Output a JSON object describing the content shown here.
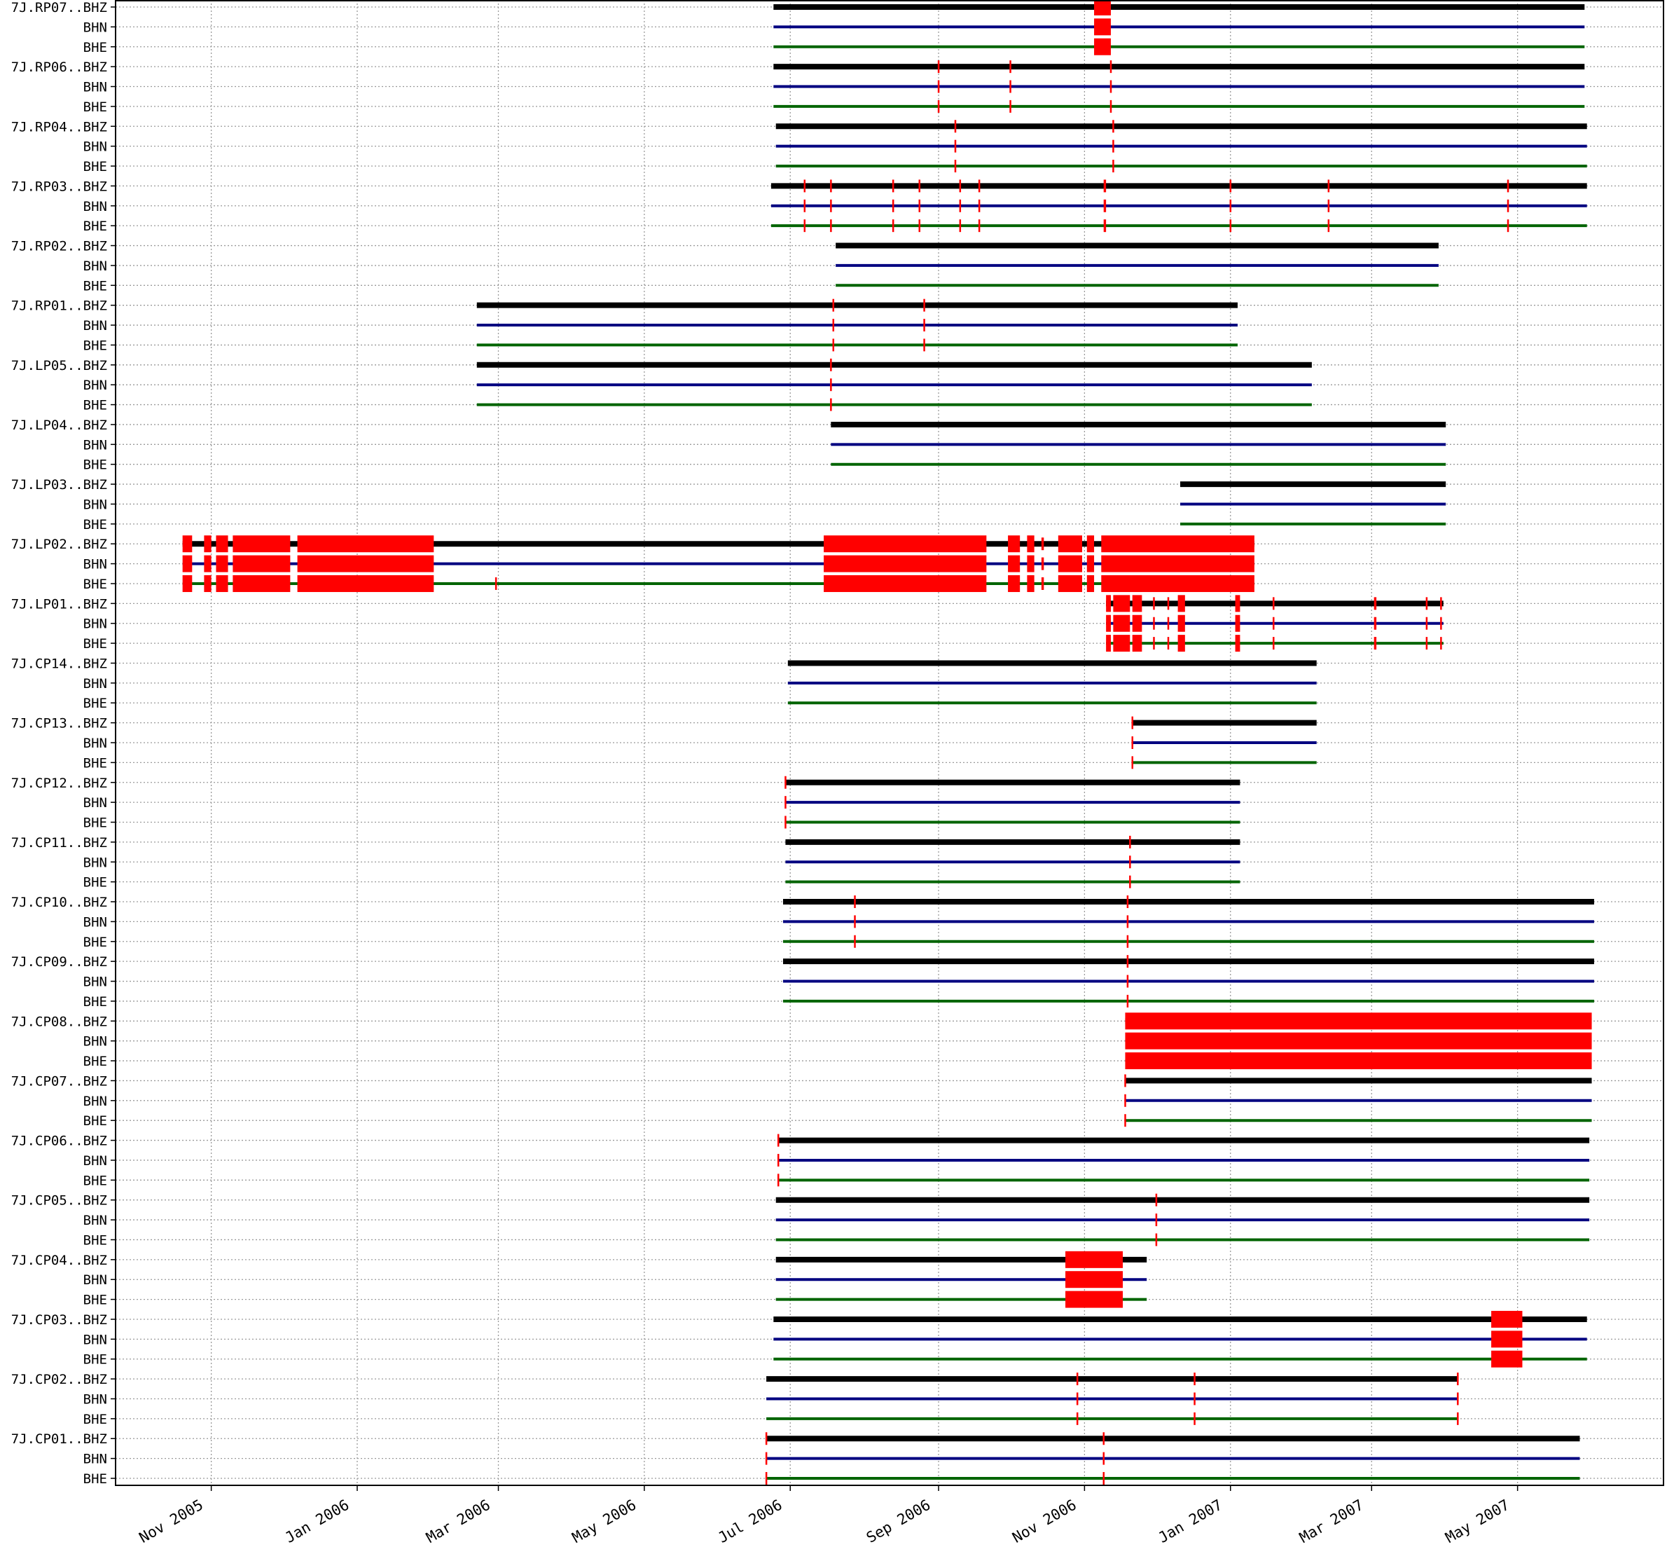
{
  "chart_data": {
    "type": "timeline",
    "title": "",
    "xlabel": "",
    "ylabel": "",
    "xlim": [
      "2005-09-22",
      "2007-07-01"
    ],
    "x_tick_labels": [
      {
        "date": "2005-11-01",
        "label": "Nov 2005"
      },
      {
        "date": "2006-01-01",
        "label": "Jan 2006"
      },
      {
        "date": "2006-03-01",
        "label": "Mar 2006"
      },
      {
        "date": "2006-05-01",
        "label": "May 2006"
      },
      {
        "date": "2006-07-01",
        "label": "Jul 2006"
      },
      {
        "date": "2006-09-01",
        "label": "Sep 2006"
      },
      {
        "date": "2006-11-01",
        "label": "Nov 2006"
      },
      {
        "date": "2007-01-01",
        "label": "Jan 2007"
      },
      {
        "date": "2007-03-01",
        "label": "Mar 2007"
      },
      {
        "date": "2007-05-01",
        "label": "May 2007"
      }
    ],
    "grid": true,
    "channel_colors": {
      "BHZ": "#000000",
      "BHN": "#000080",
      "BHE": "#006400"
    },
    "gap_color": "#ff0000",
    "stations": [
      {
        "label": "7J.RP07..BHZ",
        "start": "2006-06-24",
        "end": "2007-05-29",
        "gaps": [
          {
            "start": "2006-11-05",
            "end": "2006-11-12"
          }
        ]
      },
      {
        "label": "7J.RP06..BHZ",
        "start": "2006-06-24",
        "end": "2007-05-29",
        "gaps": [
          {
            "start": "2006-09-01",
            "end": "2006-09-01"
          },
          {
            "start": "2006-10-01",
            "end": "2006-10-01"
          },
          {
            "start": "2006-11-12",
            "end": "2006-11-12"
          }
        ]
      },
      {
        "label": "7J.RP04..BHZ",
        "start": "2006-06-25",
        "end": "2007-05-30",
        "gaps": [
          {
            "start": "2006-09-08",
            "end": "2006-09-08"
          },
          {
            "start": "2006-11-13",
            "end": "2006-11-13"
          }
        ]
      },
      {
        "label": "7J.RP03..BHZ",
        "start": "2006-06-23",
        "end": "2007-05-30",
        "gaps": [
          {
            "start": "2006-07-07",
            "end": "2006-07-07"
          },
          {
            "start": "2006-07-18",
            "end": "2006-07-18"
          },
          {
            "start": "2006-08-13",
            "end": "2006-08-13"
          },
          {
            "start": "2006-08-24",
            "end": "2006-08-24"
          },
          {
            "start": "2006-09-10",
            "end": "2006-09-10"
          },
          {
            "start": "2006-09-18",
            "end": "2006-09-18"
          },
          {
            "start": "2006-11-09",
            "end": "2006-11-10"
          },
          {
            "start": "2007-01-01",
            "end": "2007-01-01"
          },
          {
            "start": "2007-02-11",
            "end": "2007-02-11"
          },
          {
            "start": "2007-04-27",
            "end": "2007-04-27"
          }
        ]
      },
      {
        "label": "7J.RP02..BHZ",
        "start": "2006-07-20",
        "end": "2007-03-29",
        "gaps": []
      },
      {
        "label": "7J.RP01..BHZ",
        "start": "2006-02-20",
        "end": "2007-01-04",
        "gaps": [
          {
            "start": "2006-07-19",
            "end": "2006-07-19"
          },
          {
            "start": "2006-08-26",
            "end": "2006-08-26"
          }
        ]
      },
      {
        "label": "7J.LP05..BHZ",
        "start": "2006-02-20",
        "end": "2007-02-04",
        "gaps": [
          {
            "start": "2006-07-18",
            "end": "2006-07-18"
          }
        ]
      },
      {
        "label": "7J.LP04..BHZ",
        "start": "2006-07-18",
        "end": "2007-04-01",
        "gaps": []
      },
      {
        "label": "7J.LP03..BHZ",
        "start": "2006-12-11",
        "end": "2007-04-01",
        "gaps": []
      },
      {
        "label": "7J.LP02..BHZ",
        "start": "2005-10-20",
        "end": "2007-01-11",
        "gaps": [
          {
            "start": "2005-10-20",
            "end": "2005-10-24"
          },
          {
            "start": "2005-10-29",
            "end": "2005-11-01"
          },
          {
            "start": "2005-11-03",
            "end": "2005-11-08"
          },
          {
            "start": "2005-11-10",
            "end": "2005-12-04"
          },
          {
            "start": "2005-12-07",
            "end": "2006-02-02"
          },
          {
            "start": "2006-07-15",
            "end": "2006-09-21"
          },
          {
            "start": "2006-09-30",
            "end": "2006-10-05"
          },
          {
            "start": "2006-10-08",
            "end": "2006-10-11"
          },
          {
            "start": "2006-10-14",
            "end": "2006-10-15"
          },
          {
            "start": "2006-10-21",
            "end": "2006-10-31"
          },
          {
            "start": "2006-11-02",
            "end": "2006-11-05"
          },
          {
            "start": "2006-11-08",
            "end": "2007-01-11"
          }
        ]
      },
      {
        "label": "7J.LP01..BHZ",
        "start": "2006-11-10",
        "end": "2007-03-31",
        "gaps": [
          {
            "start": "2006-11-10",
            "end": "2006-11-12"
          },
          {
            "start": "2006-11-13",
            "end": "2006-11-20"
          },
          {
            "start": "2006-11-21",
            "end": "2006-11-25"
          },
          {
            "start": "2006-11-30",
            "end": "2006-11-30"
          },
          {
            "start": "2006-12-06",
            "end": "2006-12-06"
          },
          {
            "start": "2006-12-10",
            "end": "2006-12-13"
          },
          {
            "start": "2007-01-03",
            "end": "2007-01-05"
          },
          {
            "start": "2007-01-19",
            "end": "2007-01-19"
          },
          {
            "start": "2007-03-02",
            "end": "2007-03-03"
          },
          {
            "start": "2007-03-24",
            "end": "2007-03-24"
          },
          {
            "start": "2007-03-30",
            "end": "2007-03-30"
          }
        ]
      },
      {
        "label": "7J.CP14..BHZ",
        "start": "2006-06-30",
        "end": "2007-02-06",
        "gaps": []
      },
      {
        "label": "7J.CP13..BHZ",
        "start": "2006-11-21",
        "end": "2007-02-06",
        "gaps": [
          {
            "start": "2006-11-21",
            "end": "2006-11-21"
          }
        ]
      },
      {
        "label": "7J.CP12..BHZ",
        "start": "2006-06-29",
        "end": "2007-01-05",
        "gaps": [
          {
            "start": "2006-06-29",
            "end": "2006-06-29"
          }
        ]
      },
      {
        "label": "7J.CP11..BHZ",
        "start": "2006-06-29",
        "end": "2007-01-05",
        "gaps": [
          {
            "start": "2006-11-20",
            "end": "2006-11-20"
          }
        ]
      },
      {
        "label": "7J.CP10..BHZ",
        "start": "2006-06-28",
        "end": "2007-06-02",
        "gaps": [
          {
            "start": "2006-07-28",
            "end": "2006-07-28"
          },
          {
            "start": "2006-11-19",
            "end": "2006-11-19"
          }
        ]
      },
      {
        "label": "7J.CP09..BHZ",
        "start": "2006-06-28",
        "end": "2007-06-02",
        "gaps": [
          {
            "start": "2006-11-19",
            "end": "2006-11-19"
          }
        ]
      },
      {
        "label": "7J.CP08..BHZ",
        "start": "2006-11-18",
        "end": "2007-06-01",
        "gaps": [
          {
            "start": "2006-11-18",
            "end": "2007-06-01"
          }
        ]
      },
      {
        "label": "7J.CP07..BHZ",
        "start": "2006-11-18",
        "end": "2007-06-01",
        "gaps": [
          {
            "start": "2006-11-18",
            "end": "2006-11-18"
          }
        ]
      },
      {
        "label": "7J.CP06..BHZ",
        "start": "2006-06-26",
        "end": "2007-05-31",
        "gaps": [
          {
            "start": "2006-06-26",
            "end": "2006-06-26"
          }
        ]
      },
      {
        "label": "7J.CP05..BHZ",
        "start": "2006-06-25",
        "end": "2007-05-31",
        "gaps": [
          {
            "start": "2006-12-01",
            "end": "2006-12-01"
          }
        ]
      },
      {
        "label": "7J.CP04..BHZ",
        "start": "2006-06-25",
        "end": "2006-11-27",
        "gaps": [
          {
            "start": "2006-10-24",
            "end": "2006-11-17"
          }
        ]
      },
      {
        "label": "7J.CP03..BHZ",
        "start": "2006-06-24",
        "end": "2007-05-30",
        "gaps": [
          {
            "start": "2007-04-20",
            "end": "2007-05-03"
          }
        ]
      },
      {
        "label": "7J.CP02..BHZ",
        "start": "2006-06-21",
        "end": "2007-04-06",
        "gaps": [
          {
            "start": "2006-10-29",
            "end": "2006-10-29"
          },
          {
            "start": "2006-12-17",
            "end": "2006-12-17"
          },
          {
            "start": "2007-04-06",
            "end": "2007-04-06"
          }
        ]
      },
      {
        "label": "7J.CP01..BHZ",
        "start": "2006-06-21",
        "end": "2007-05-27",
        "gaps": [
          {
            "start": "2006-06-21",
            "end": "2006-06-21"
          },
          {
            "start": "2006-11-09",
            "end": "2006-11-09"
          }
        ]
      }
    ],
    "extra_gaps": [
      {
        "station": "7J.LP02..BHZ",
        "channel": "BHE",
        "start": "2006-02-28",
        "end": "2006-02-28"
      }
    ],
    "channel_labels": [
      "BHN",
      "BHE"
    ]
  }
}
